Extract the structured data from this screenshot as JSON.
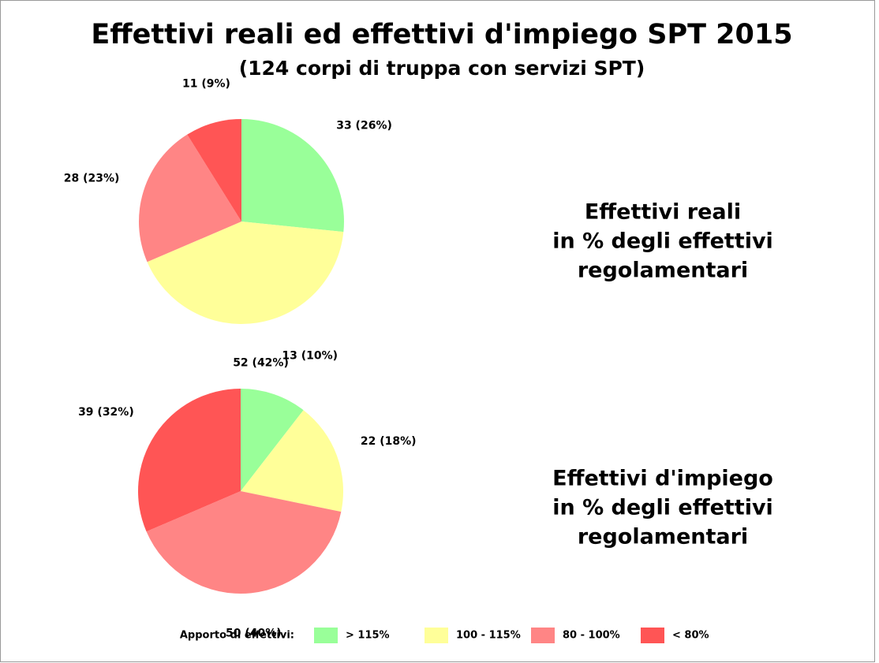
{
  "title": "Effettivi reali ed effettivi d'impiego SPT 2015",
  "subtitle": "(124 corpi di truppa con servizi SPT)",
  "legend_title": "Apporto di effettivi:",
  "chart_data": [
    {
      "type": "pie",
      "title": [
        "Effettivi reali",
        "in % degli effettivi",
        "regolamentari"
      ],
      "categories": [
        "> 115%",
        "100 - 115%",
        "80 - 100%",
        "< 80%"
      ],
      "colors": [
        "#99ff99",
        "#ffff99",
        "#ff8585",
        "#ff5555"
      ],
      "values": [
        33,
        52,
        28,
        11
      ],
      "value_labels": [
        "33 (26%)",
        "52 (42%)",
        "28 (23%)",
        "11 (9%)"
      ]
    },
    {
      "type": "pie",
      "title": [
        "Effettivi d'impiego",
        "in % degli effettivi",
        "regolamentari"
      ],
      "categories": [
        "> 115%",
        "100 - 115%",
        "80 - 100%",
        "< 80%"
      ],
      "colors": [
        "#99ff99",
        "#ffff99",
        "#ff8585",
        "#ff5555"
      ],
      "values": [
        13,
        22,
        50,
        39
      ],
      "value_labels": [
        "13 (10%)",
        "22 (18%)",
        "50 (40%)",
        "39 (32%)"
      ]
    }
  ]
}
